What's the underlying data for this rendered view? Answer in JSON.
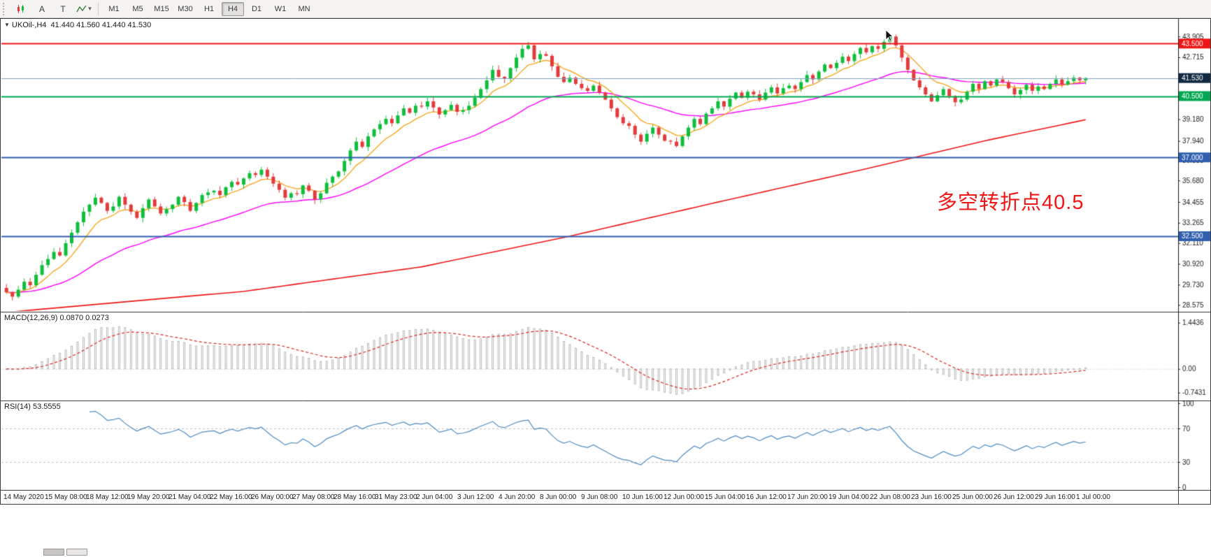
{
  "icons": {
    "dropdown": "▾",
    "symbol_arrow": "▼"
  },
  "toolbar": {
    "tools": [
      {
        "label": "A"
      },
      {
        "label": "T"
      }
    ],
    "timeframes": [
      "M1",
      "M5",
      "M15",
      "M30",
      "H1",
      "H4",
      "D1",
      "W1",
      "MN"
    ],
    "active_timeframe": "H4"
  },
  "chart": {
    "symbol_label": "UKOil-,H4",
    "ohlc_label": "41.440 41.560 41.440 41.530",
    "annotation": {
      "text": "多空转折点40.5",
      "color": "#f01515"
    }
  },
  "chart_data": {
    "type": "candlestick",
    "symbol": "UKOil-",
    "timeframe": "H4",
    "current_price": 41.53,
    "ohlc": {
      "open": 41.44,
      "high": 41.56,
      "low": 41.44,
      "close": 41.53
    },
    "price_range": [
      28.35,
      44.75
    ],
    "first_open": 29.55,
    "closes": [
      29.3,
      29.05,
      29.45,
      29.9,
      29.7,
      30.3,
      30.85,
      31.2,
      31.6,
      31.4,
      32.1,
      32.7,
      33.3,
      33.9,
      34.3,
      34.7,
      34.4,
      33.95,
      34.2,
      34.75,
      34.3,
      33.9,
      33.55,
      34.1,
      34.6,
      34.2,
      33.8,
      34.05,
      34.3,
      34.75,
      34.45,
      33.95,
      34.4,
      34.85,
      35.0,
      35.1,
      34.85,
      35.3,
      35.6,
      35.45,
      35.8,
      36.1,
      36.0,
      36.3,
      35.9,
      35.5,
      35.15,
      34.7,
      34.95,
      34.9,
      35.4,
      35.1,
      34.6,
      34.95,
      35.55,
      35.9,
      36.2,
      36.8,
      37.4,
      37.9,
      37.6,
      38.2,
      38.6,
      38.9,
      39.2,
      38.95,
      39.4,
      39.8,
      39.55,
      39.95,
      39.9,
      40.2,
      39.85,
      39.45,
      39.7,
      40.0,
      39.6,
      39.7,
      39.95,
      40.4,
      40.9,
      41.4,
      42.0,
      41.6,
      41.5,
      42.1,
      42.7,
      43.2,
      43.4,
      42.6,
      42.9,
      42.8,
      42.2,
      41.6,
      41.3,
      41.55,
      41.2,
      40.95,
      40.8,
      41.1,
      40.7,
      40.3,
      39.8,
      39.3,
      38.95,
      38.8,
      38.3,
      37.9,
      38.35,
      38.7,
      38.3,
      37.95,
      37.9,
      37.65,
      38.2,
      38.7,
      39.2,
      38.9,
      39.5,
      39.8,
      40.2,
      39.9,
      40.35,
      40.7,
      40.4,
      40.75,
      40.6,
      40.3,
      40.7,
      41.0,
      40.65,
      40.95,
      41.1,
      40.9,
      41.3,
      41.7,
      41.45,
      41.9,
      42.3,
      42.1,
      42.4,
      42.75,
      42.5,
      42.9,
      43.25,
      43.0,
      43.35,
      43.2,
      43.6,
      43.9,
      43.4,
      42.7,
      42.0,
      41.4,
      41.0,
      40.6,
      40.2,
      40.55,
      40.9,
      40.5,
      40.15,
      40.3,
      40.75,
      41.2,
      40.9,
      41.35,
      41.1,
      41.45,
      41.3,
      40.95,
      40.6,
      40.85,
      41.15,
      40.8,
      41.05,
      40.9,
      41.2,
      41.45,
      41.15,
      41.35,
      41.55,
      41.4,
      41.53
    ],
    "y_ticks": [
      43.905,
      42.715,
      39.18,
      37.94,
      36.835,
      35.68,
      34.455,
      33.265,
      32.11,
      30.92,
      29.73,
      28.575
    ],
    "price_tags": [
      {
        "value": 43.5,
        "label": "43.500",
        "color": "#f01515"
      },
      {
        "value": 41.53,
        "label": "41.530",
        "color": "#102a43"
      },
      {
        "value": 40.5,
        "label": "40.500",
        "color": "#00a651"
      },
      {
        "value": 37.0,
        "label": "37.000",
        "color": "#2f5fae"
      },
      {
        "value": 32.5,
        "label": "32.500",
        "color": "#2f5fae"
      }
    ],
    "h_lines": [
      {
        "value": 43.5,
        "color": "#f01515",
        "width": 2
      },
      {
        "value": 41.53,
        "color": "#7fa0bc",
        "width": 1
      },
      {
        "value": 40.5,
        "color": "#00a651",
        "width": 2
      },
      {
        "value": 37.0,
        "color": "#2f5fae",
        "width": 2
      },
      {
        "value": 32.5,
        "color": "#2f5fae",
        "width": 2
      }
    ],
    "candle_colors": {
      "bull": "#0fbf3c",
      "bear": "#e33b3b"
    },
    "moving_averages": {
      "fast": {
        "period": 8,
        "color": "#f6a821"
      },
      "mid": {
        "period": 34,
        "color": "#ff00ff"
      },
      "slow": {
        "color": "#f01515",
        "points": [
          [
            14,
            28.575
          ],
          [
            40,
            29.35
          ],
          [
            70,
            30.75
          ],
          [
            95,
            32.5
          ],
          [
            120,
            34.45
          ],
          [
            145,
            36.35
          ],
          [
            165,
            37.95
          ],
          [
            182,
            39.15
          ]
        ]
      }
    },
    "x_labels": [
      "14 May 2020",
      "15 May 08:00",
      "18 May 12:00",
      "19 May 20:00",
      "21 May 04:00",
      "22 May 16:00",
      "26 May 00:00",
      "27 May 08:00",
      "28 May 16:00",
      "31 May 23:00",
      "2 Jun 04:00",
      "3 Jun 12:00",
      "4 Jun 20:00",
      "8 Jun 00:00",
      "9 Jun 08:00",
      "10 Jun 16:00",
      "12 Jun 00:00",
      "15 Jun 04:00",
      "16 Jun 12:00",
      "17 Jun 20:00",
      "19 Jun 04:00",
      "22 Jun 08:00",
      "23 Jun 16:00",
      "25 Jun 00:00",
      "26 Jun 12:00",
      "29 Jun 16:00",
      "1 Jul 00:00"
    ],
    "macd": {
      "label": "MACD(12,26,9) 0.0870 0.0273",
      "fast": 12,
      "slow": 26,
      "signal_period": 9,
      "values_display": [
        "0.0870",
        "0.0273"
      ],
      "axis_labels": {
        "max": "1.4436",
        "zero": "0.00",
        "min": "-0.7431"
      },
      "draw_range": [
        -0.9,
        1.7
      ],
      "bar_color": "#a8a8a8",
      "signal_color": "#e02020"
    },
    "rsi": {
      "label": "RSI(14) 53.5555",
      "period": 14,
      "current": 53.5555,
      "levels": [
        70,
        30
      ],
      "axis_labels": [
        "100",
        "70",
        "30",
        "0"
      ],
      "line_color": "#4a8bc2"
    }
  }
}
